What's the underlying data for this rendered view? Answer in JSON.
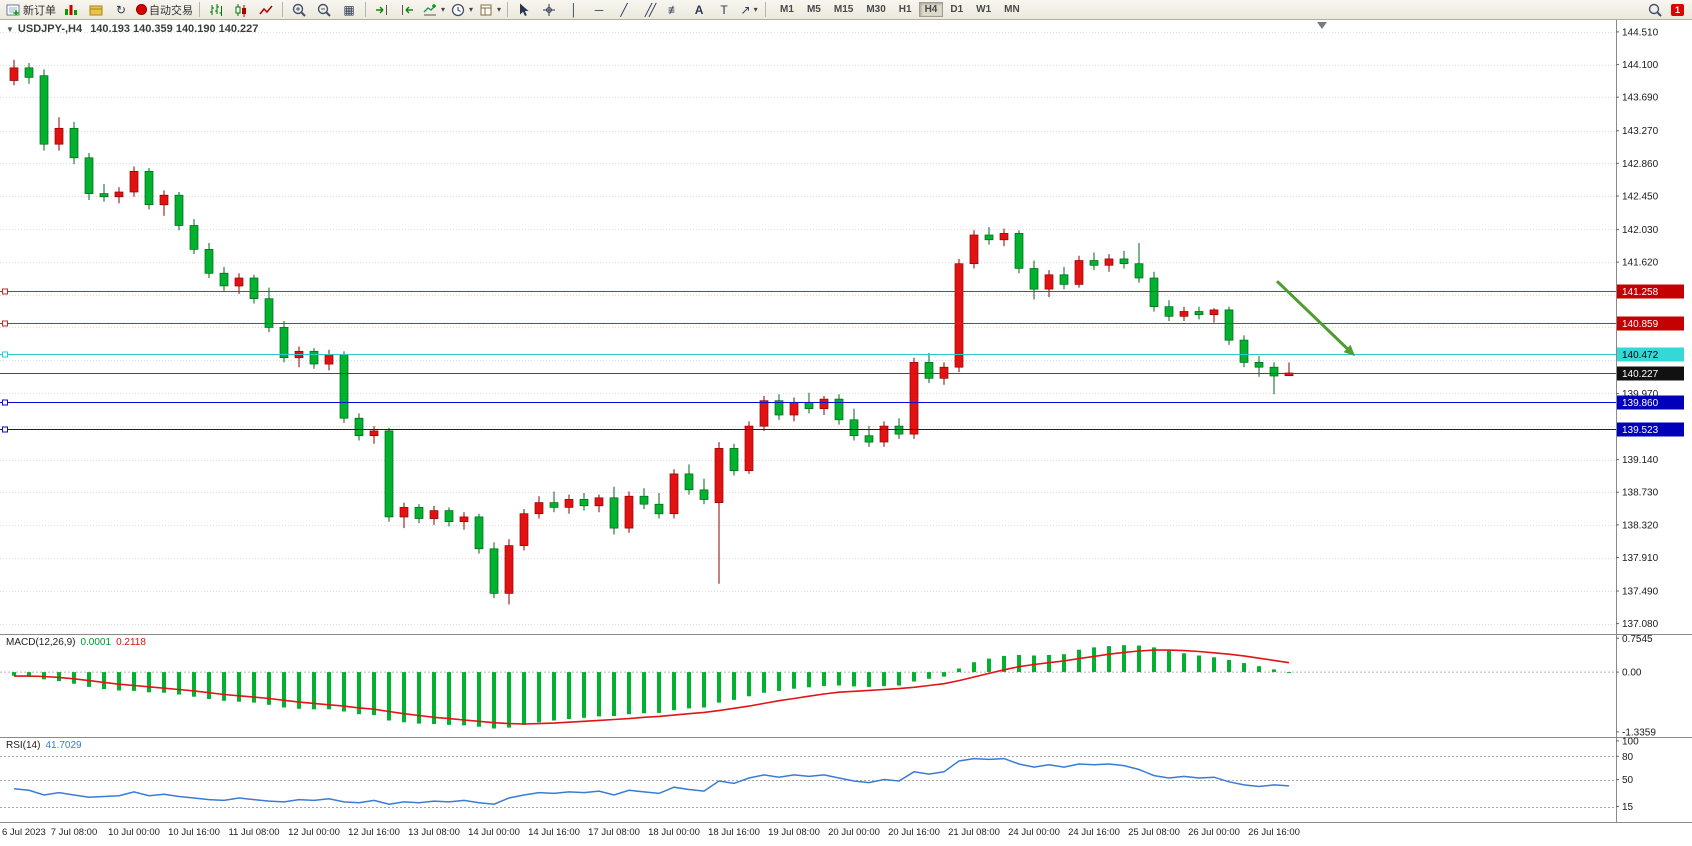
{
  "toolbar": {
    "new_order": "新订单",
    "autotrading": "自动交易",
    "periods": [
      "M1",
      "M5",
      "M15",
      "M30",
      "H1",
      "H4",
      "D1",
      "W1",
      "MN"
    ],
    "active_period": "H4",
    "notification_count": "1",
    "icons": [
      "new-order-icon",
      "quotes-icon",
      "profile-icon",
      "refresh-icon",
      "autotrading-icon",
      "bars-icon",
      "candles-icon",
      "line-chart-icon",
      "zoom-in-icon",
      "zoom-out-icon",
      "tile-windows-icon",
      "auto-scroll-icon",
      "shift-chart-icon",
      "add-indicator-icon",
      "periods-clock-icon",
      "templates-icon",
      "cursor-icon",
      "crosshair-icon",
      "vertical-line-icon",
      "horizontal-line-icon",
      "trendline-icon",
      "channel-icon",
      "fibonacci-icon",
      "text-icon",
      "label-icon",
      "arrows-icon",
      "search-icon",
      "notification-badge"
    ],
    "tool_glyphs": {
      "vline": "│",
      "hline": "─",
      "trend": "╱",
      "channel": "╱╱",
      "fib": "≢",
      "text": "A",
      "label": "T",
      "arrows": "↗",
      "tile": "▦",
      "refresh": "↻",
      "caret": "▾"
    }
  },
  "chart": {
    "collapse_glyph": "▼",
    "symbol": "USDJPY-,H4",
    "ohlc": "140.193 140.359 140.190 140.227"
  },
  "chart_data": [
    {
      "type": "candlestick",
      "symbol": "USDJPY-",
      "period": "H4",
      "up_color": "#e31212",
      "up_border": "#8f0000",
      "down_color": "#00b22d",
      "down_border": "#00641a",
      "y_axis": {
        "min": 136.95,
        "max": 144.66,
        "grid_ticks": [
          144.51,
          144.1,
          143.69,
          143.27,
          142.86,
          142.45,
          142.03,
          141.62,
          141.21,
          140.8,
          140.39,
          139.97,
          139.56,
          139.14,
          138.73,
          138.32,
          137.91,
          137.49,
          137.08
        ],
        "tick_labels": [
          144.51,
          144.1,
          143.69,
          143.27,
          142.86,
          142.45,
          142.03,
          141.62,
          139.97,
          139.14,
          138.73,
          138.32,
          137.91,
          137.49,
          137.08
        ]
      },
      "hlines": [
        {
          "price": 141.258,
          "label": "141.258",
          "color": "#d81f1f",
          "badge_bg": "#c40000",
          "badge_fg": "#ffffff"
        },
        {
          "price": 140.859,
          "label": "140.859",
          "color": "#d81f1f",
          "badge_bg": "#c40000",
          "badge_fg": "#ffffff"
        },
        {
          "price": 140.472,
          "label": "140.472",
          "color": "#2fc9c9",
          "badge_bg": "#35d8d8",
          "badge_fg": "#000000"
        },
        {
          "price": 140.227,
          "label": "140.227",
          "color": "#4a4a4a",
          "badge_bg": "#111111",
          "badge_fg": "#ffffff",
          "current": true
        },
        {
          "price": 139.86,
          "label": "139.860",
          "color": "#0a0ad0",
          "badge_bg": "#0000bb",
          "badge_fg": "#ffffff"
        },
        {
          "price": 139.523,
          "label": "139.523",
          "color": "#0a0ad0",
          "badge_bg": "#0000bb",
          "badge_fg": "#ffffff"
        }
      ],
      "arrow": {
        "i1": 84.2,
        "p1": 141.38,
        "i2": 89.4,
        "p2": 140.44,
        "color": "#4f9d2f"
      },
      "shift_marker_i": 87.2,
      "label_step": 4,
      "time_labels": [
        "6 Jul 2023",
        "7 Jul 08:00",
        "10 Jul 00:00",
        "10 Jul 16:00",
        "11 Jul 08:00",
        "12 Jul 00:00",
        "12 Jul 16:00",
        "13 Jul 08:00",
        "14 Jul 00:00",
        "14 Jul 16:00",
        "17 Jul 08:00",
        "18 Jul 00:00",
        "18 Jul 16:00",
        "19 Jul 08:00",
        "20 Jul 00:00",
        "20 Jul 16:00",
        "21 Jul 08:00",
        "24 Jul 00:00",
        "24 Jul 16:00",
        "25 Jul 08:00",
        "26 Jul 00:00",
        "26 Jul 16:00"
      ],
      "candles": [
        [
          143.9,
          144.16,
          143.84,
          144.06
        ],
        [
          144.06,
          144.12,
          143.86,
          143.94
        ],
        [
          143.96,
          144.04,
          143.02,
          143.1
        ],
        [
          143.1,
          143.44,
          143.02,
          143.3
        ],
        [
          143.3,
          143.38,
          142.85,
          142.93
        ],
        [
          142.93,
          142.99,
          142.4,
          142.48
        ],
        [
          142.48,
          142.6,
          142.38,
          142.44
        ],
        [
          142.44,
          142.56,
          142.36,
          142.5
        ],
        [
          142.5,
          142.82,
          142.44,
          142.76
        ],
        [
          142.76,
          142.8,
          142.28,
          142.34
        ],
        [
          142.34,
          142.52,
          142.2,
          142.46
        ],
        [
          142.46,
          142.5,
          142.02,
          142.08
        ],
        [
          142.08,
          142.16,
          141.72,
          141.78
        ],
        [
          141.78,
          141.86,
          141.42,
          141.48
        ],
        [
          141.48,
          141.56,
          141.26,
          141.32
        ],
        [
          141.32,
          141.48,
          141.22,
          141.42
        ],
        [
          141.42,
          141.46,
          141.1,
          141.16
        ],
        [
          141.16,
          141.3,
          140.74,
          140.8
        ],
        [
          140.8,
          140.88,
          140.36,
          140.42
        ],
        [
          140.42,
          140.56,
          140.3,
          140.5
        ],
        [
          140.5,
          140.54,
          140.28,
          140.34
        ],
        [
          140.34,
          140.52,
          140.26,
          140.46
        ],
        [
          140.46,
          140.5,
          139.6,
          139.66
        ],
        [
          139.66,
          139.72,
          139.38,
          139.44
        ],
        [
          139.44,
          139.56,
          139.34,
          139.5
        ],
        [
          139.5,
          139.54,
          138.36,
          138.42
        ],
        [
          138.42,
          138.6,
          138.28,
          138.54
        ],
        [
          138.54,
          138.58,
          138.34,
          138.4
        ],
        [
          138.4,
          138.56,
          138.32,
          138.5
        ],
        [
          138.5,
          138.54,
          138.3,
          138.36
        ],
        [
          138.36,
          138.48,
          138.26,
          138.42
        ],
        [
          138.42,
          138.46,
          137.96,
          138.02
        ],
        [
          138.02,
          138.1,
          137.4,
          137.46
        ],
        [
          137.46,
          138.14,
          137.32,
          138.06
        ],
        [
          138.06,
          138.52,
          138.0,
          138.46
        ],
        [
          138.46,
          138.68,
          138.4,
          138.6
        ],
        [
          138.6,
          138.74,
          138.48,
          138.54
        ],
        [
          138.54,
          138.7,
          138.46,
          138.64
        ],
        [
          138.64,
          138.72,
          138.5,
          138.56
        ],
        [
          138.56,
          138.7,
          138.48,
          138.66
        ],
        [
          138.66,
          138.8,
          138.2,
          138.28
        ],
        [
          138.28,
          138.74,
          138.22,
          138.68
        ],
        [
          138.68,
          138.78,
          138.52,
          138.58
        ],
        [
          138.58,
          138.72,
          138.4,
          138.46
        ],
        [
          138.46,
          139.02,
          138.4,
          138.96
        ],
        [
          138.96,
          139.08,
          138.7,
          138.76
        ],
        [
          138.76,
          138.9,
          138.58,
          138.64
        ],
        [
          138.6,
          139.36,
          137.58,
          139.28
        ],
        [
          139.28,
          139.34,
          138.94,
          139.0
        ],
        [
          139.0,
          139.62,
          138.96,
          139.56
        ],
        [
          139.56,
          139.94,
          139.5,
          139.88
        ],
        [
          139.88,
          139.96,
          139.64,
          139.7
        ],
        [
          139.7,
          139.92,
          139.62,
          139.86
        ],
        [
          139.86,
          139.98,
          139.72,
          139.78
        ],
        [
          139.78,
          139.94,
          139.7,
          139.9
        ],
        [
          139.9,
          139.96,
          139.58,
          139.64
        ],
        [
          139.64,
          139.78,
          139.38,
          139.44
        ],
        [
          139.44,
          139.56,
          139.3,
          139.36
        ],
        [
          139.36,
          139.62,
          139.3,
          139.56
        ],
        [
          139.56,
          139.66,
          139.4,
          139.46
        ],
        [
          139.46,
          140.42,
          139.4,
          140.36
        ],
        [
          140.36,
          140.48,
          140.1,
          140.16
        ],
        [
          140.16,
          140.36,
          140.08,
          140.3
        ],
        [
          140.3,
          141.66,
          140.24,
          141.6
        ],
        [
          141.6,
          142.02,
          141.54,
          141.96
        ],
        [
          141.96,
          142.06,
          141.84,
          141.9
        ],
        [
          141.9,
          142.04,
          141.82,
          141.98
        ],
        [
          141.98,
          142.02,
          141.48,
          141.54
        ],
        [
          141.54,
          141.64,
          141.15,
          141.28
        ],
        [
          141.28,
          141.52,
          141.18,
          141.46
        ],
        [
          141.46,
          141.56,
          141.28,
          141.34
        ],
        [
          141.34,
          141.7,
          141.3,
          141.64
        ],
        [
          141.64,
          141.74,
          141.52,
          141.58
        ],
        [
          141.58,
          141.72,
          141.5,
          141.66
        ],
        [
          141.66,
          141.76,
          141.54,
          141.6
        ],
        [
          141.6,
          141.86,
          141.36,
          141.42
        ],
        [
          141.42,
          141.5,
          141.0,
          141.06
        ],
        [
          141.06,
          141.14,
          140.88,
          140.94
        ],
        [
          140.94,
          141.06,
          140.88,
          141.0
        ],
        [
          141.0,
          141.06,
          140.9,
          140.96
        ],
        [
          140.96,
          141.04,
          140.86,
          141.02
        ],
        [
          141.02,
          141.06,
          140.58,
          140.64
        ],
        [
          140.64,
          140.7,
          140.3,
          140.36
        ],
        [
          140.36,
          140.44,
          140.18,
          140.3
        ],
        [
          140.3,
          140.36,
          139.96,
          140.19
        ],
        [
          140.193,
          140.359,
          140.19,
          140.227
        ]
      ]
    },
    {
      "type": "bar",
      "name": "MACD(12,26,9)",
      "value_main": "0.0001",
      "value_signal": "0.2118",
      "y_max": 0.85,
      "y_min": -1.45,
      "axis_labels": [
        {
          "v": 0.7545,
          "t": "0.7545"
        },
        {
          "v": 0,
          "t": "0.00"
        },
        {
          "v": -1.3359,
          "t": "-1.3359"
        }
      ],
      "histogram_color": "#00b22d",
      "signal_color": "#e01515",
      "histogram": [
        -0.08,
        -0.1,
        -0.16,
        -0.2,
        -0.26,
        -0.33,
        -0.38,
        -0.41,
        -0.42,
        -0.45,
        -0.46,
        -0.5,
        -0.55,
        -0.6,
        -0.64,
        -0.66,
        -0.68,
        -0.73,
        -0.79,
        -0.82,
        -0.83,
        -0.83,
        -0.88,
        -0.94,
        -0.96,
        -1.08,
        -1.12,
        -1.15,
        -1.16,
        -1.18,
        -1.19,
        -1.22,
        -1.26,
        -1.24,
        -1.18,
        -1.12,
        -1.08,
        -1.05,
        -1.02,
        -0.99,
        -0.98,
        -0.94,
        -0.92,
        -0.91,
        -0.85,
        -0.81,
        -0.79,
        -0.68,
        -0.62,
        -0.54,
        -0.46,
        -0.42,
        -0.37,
        -0.34,
        -0.31,
        -0.3,
        -0.32,
        -0.33,
        -0.31,
        -0.3,
        -0.21,
        -0.15,
        -0.1,
        0.08,
        0.22,
        0.3,
        0.36,
        0.38,
        0.37,
        0.38,
        0.4,
        0.5,
        0.55,
        0.58,
        0.6,
        0.59,
        0.55,
        0.48,
        0.42,
        0.37,
        0.33,
        0.27,
        0.2,
        0.13,
        0.06,
        0.0
      ],
      "signal": [
        -0.09,
        -0.09,
        -0.1,
        -0.12,
        -0.15,
        -0.19,
        -0.23,
        -0.27,
        -0.3,
        -0.33,
        -0.36,
        -0.39,
        -0.42,
        -0.46,
        -0.5,
        -0.53,
        -0.56,
        -0.59,
        -0.63,
        -0.67,
        -0.7,
        -0.73,
        -0.76,
        -0.8,
        -0.83,
        -0.88,
        -0.93,
        -0.97,
        -1.01,
        -1.04,
        -1.07,
        -1.1,
        -1.13,
        -1.15,
        -1.16,
        -1.15,
        -1.14,
        -1.12,
        -1.1,
        -1.08,
        -1.06,
        -1.04,
        -1.01,
        -0.99,
        -0.96,
        -0.93,
        -0.9,
        -0.86,
        -0.81,
        -0.76,
        -0.7,
        -0.64,
        -0.59,
        -0.54,
        -0.49,
        -0.45,
        -0.43,
        -0.41,
        -0.39,
        -0.37,
        -0.34,
        -0.3,
        -0.26,
        -0.19,
        -0.11,
        -0.03,
        0.05,
        0.12,
        0.17,
        0.21,
        0.25,
        0.3,
        0.35,
        0.4,
        0.44,
        0.47,
        0.49,
        0.49,
        0.48,
        0.46,
        0.43,
        0.4,
        0.36,
        0.31,
        0.26,
        0.21
      ]
    },
    {
      "type": "line",
      "name": "RSI(14)",
      "value": "41.7029",
      "y_max": 105,
      "y_min": -5,
      "levels": [
        80,
        50,
        15
      ],
      "axis_labels": [
        {
          "v": 100,
          "t": "100"
        },
        {
          "v": 80,
          "t": "80"
        },
        {
          "v": 50,
          "t": "50"
        },
        {
          "v": 15,
          "t": "15"
        }
      ],
      "line_color": "#3a7bd5",
      "values": [
        38,
        36,
        30,
        33,
        30,
        27,
        28,
        29,
        34,
        29,
        31,
        28,
        26,
        24,
        23,
        26,
        24,
        22,
        21,
        24,
        23,
        25,
        21,
        20,
        23,
        18,
        21,
        20,
        22,
        21,
        23,
        20,
        18,
        26,
        30,
        33,
        32,
        34,
        33,
        35,
        30,
        36,
        34,
        32,
        40,
        37,
        35,
        48,
        45,
        52,
        56,
        53,
        56,
        54,
        56,
        52,
        48,
        46,
        50,
        48,
        60,
        57,
        60,
        74,
        77,
        76,
        77,
        70,
        66,
        69,
        66,
        70,
        69,
        70,
        68,
        63,
        55,
        52,
        54,
        52,
        53,
        47,
        43,
        41,
        43,
        41.7
      ]
    }
  ]
}
